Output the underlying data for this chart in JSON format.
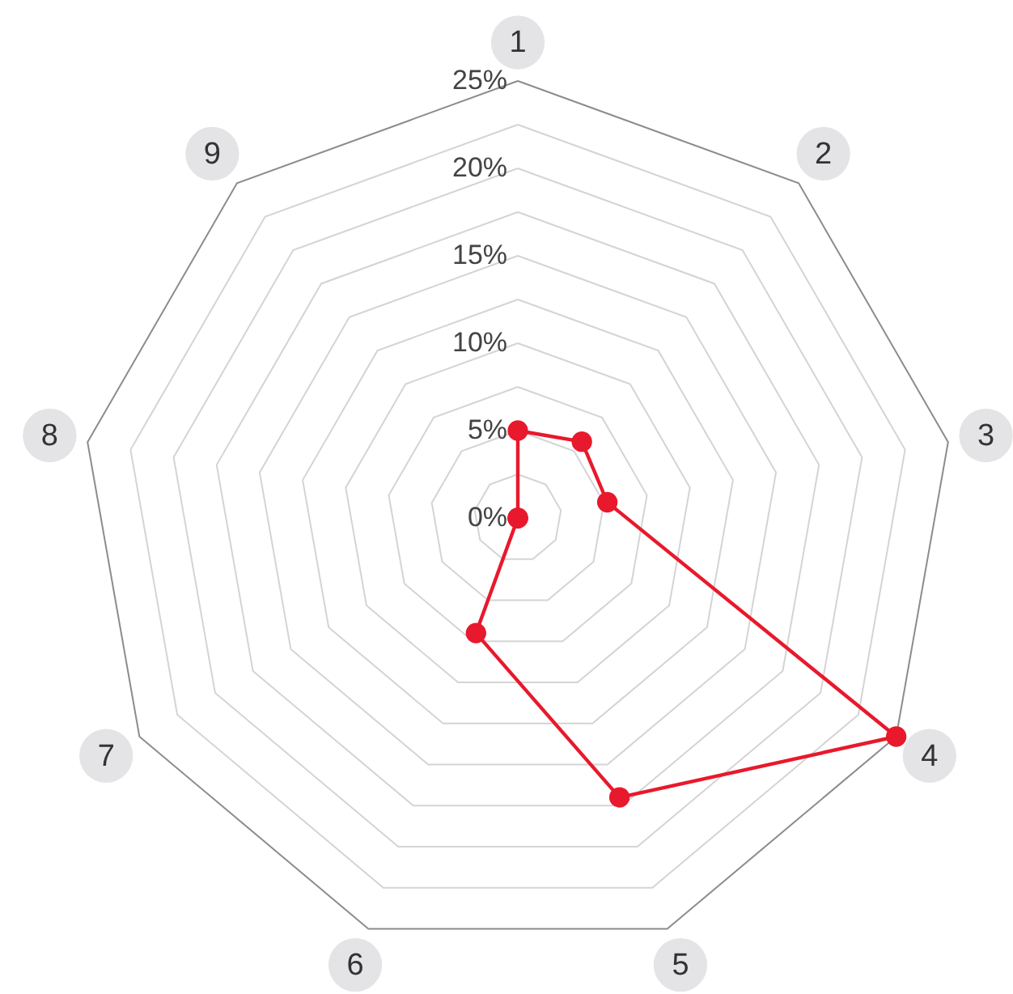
{
  "chart_data": {
    "type": "radar",
    "categories": [
      "1",
      "2",
      "3",
      "4",
      "5",
      "6",
      "7",
      "8",
      "9"
    ],
    "series": [
      {
        "color": "#e8192c",
        "values": [
          5,
          5.7,
          5.2,
          25,
          17,
          7,
          0,
          0,
          0
        ]
      }
    ],
    "ylim": [
      0,
      25
    ],
    "yticks": [
      {
        "value": 0,
        "label": "0%"
      },
      {
        "value": 5,
        "label": "5%"
      },
      {
        "value": 10,
        "label": "10%"
      },
      {
        "value": 15,
        "label": "15%"
      },
      {
        "value": 20,
        "label": "20%"
      },
      {
        "value": 25,
        "label": "25%"
      }
    ],
    "grid": true,
    "marker": "circle",
    "line_style": "solid"
  }
}
